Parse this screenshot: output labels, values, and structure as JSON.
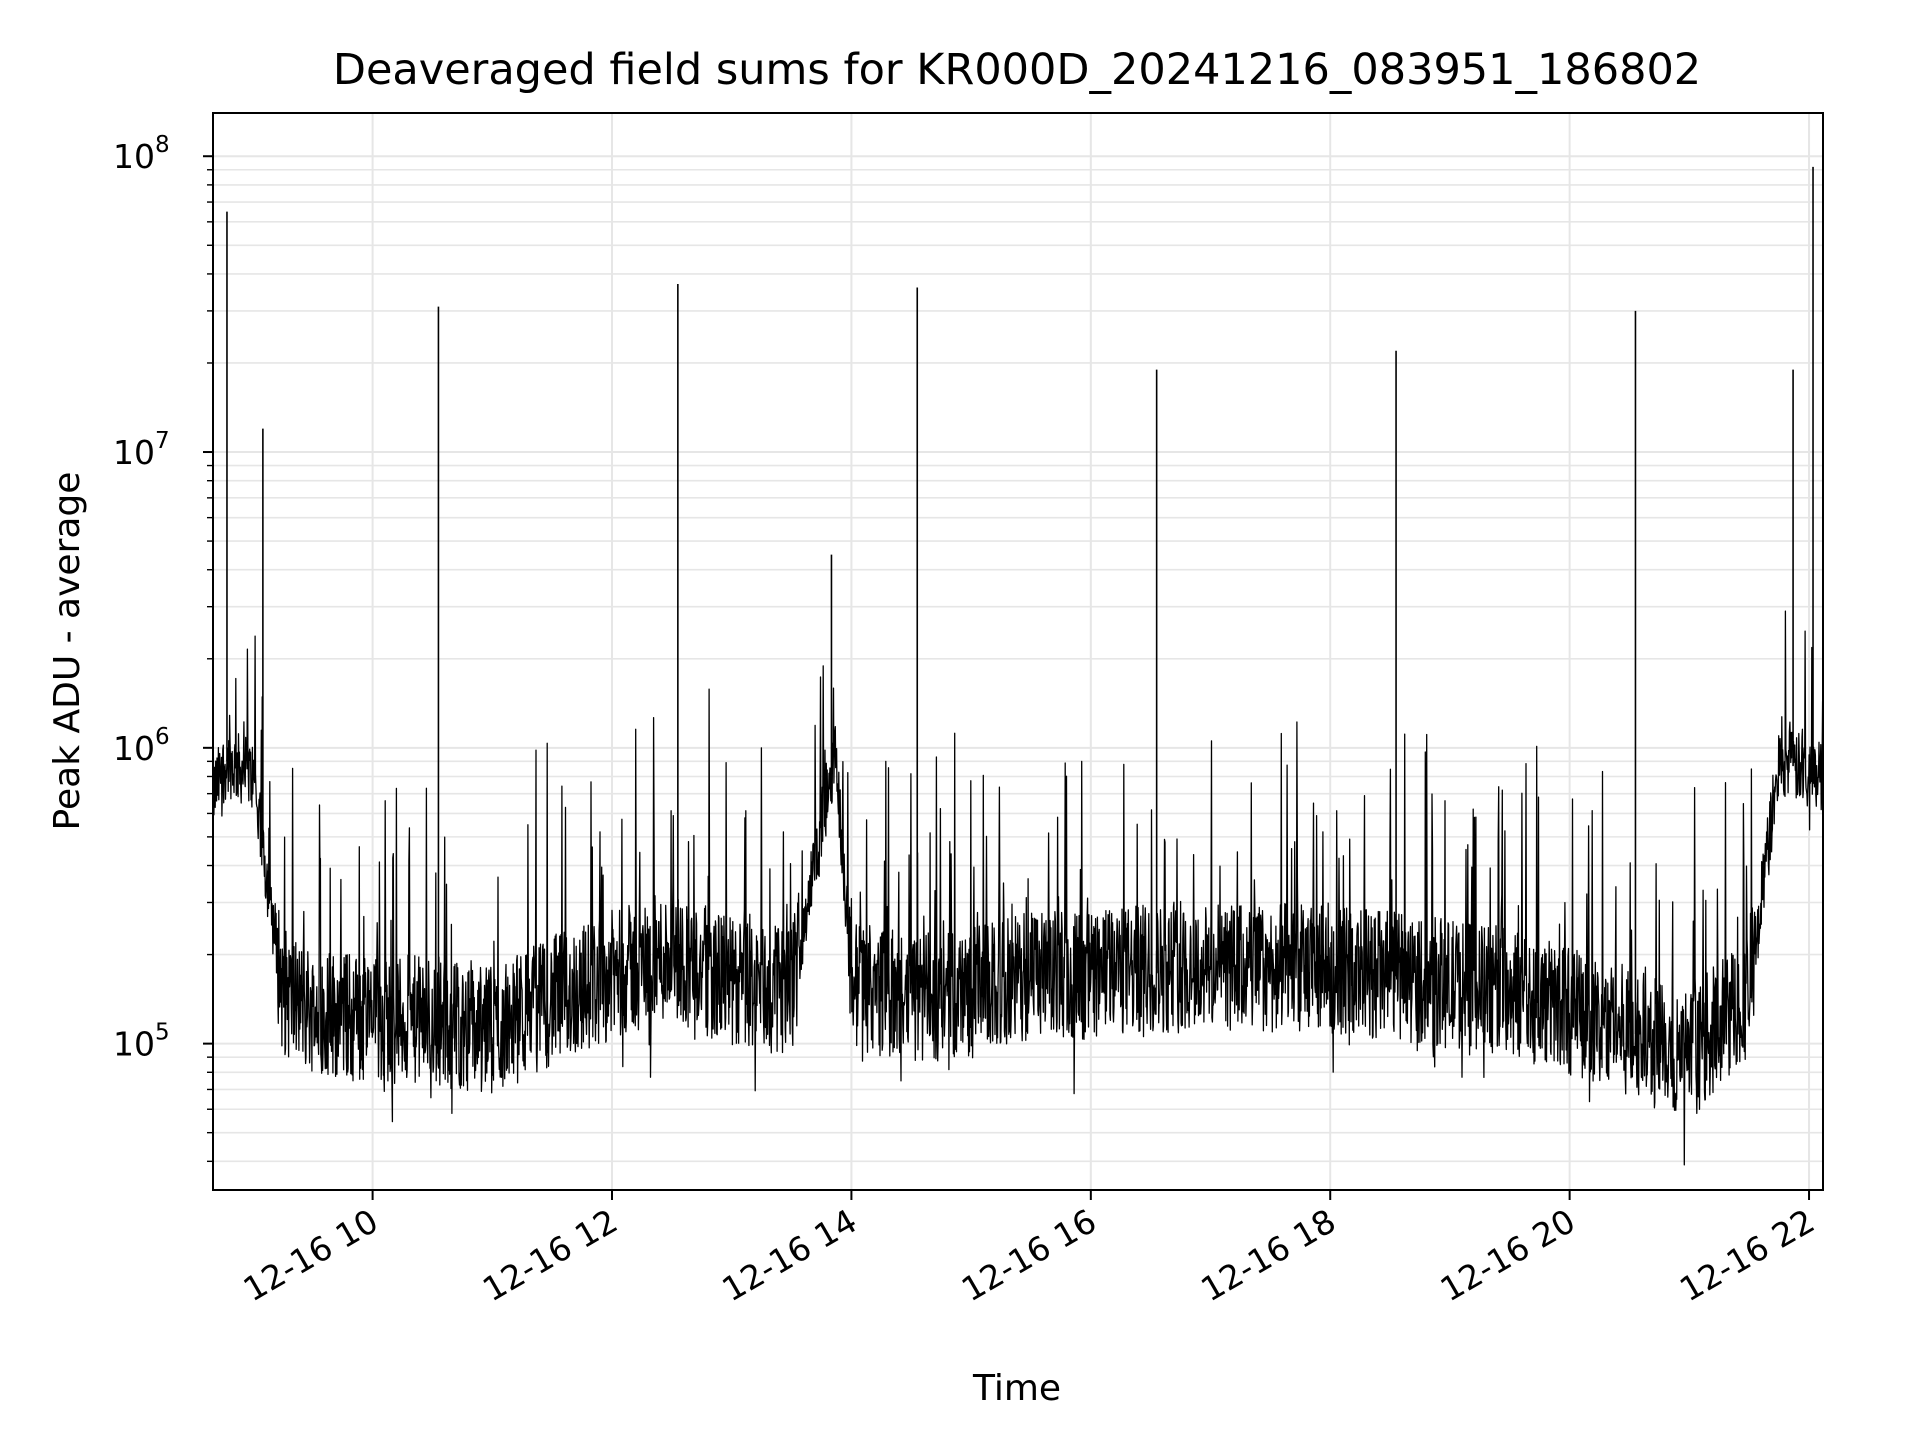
{
  "chart_data": {
    "type": "line",
    "title": "Deaveraged field sums for KR000D_20241216_083951_186802",
    "xlabel": "Time",
    "ylabel": "Peak ADU - average",
    "yscale": "log",
    "xlim": [
      "2024-12-16 08:40",
      "2024-12-16 22:07"
    ],
    "ylim": [
      32000,
      140000000
    ],
    "grid": "on (major and minor, light gray)",
    "x_ticks": [
      {
        "label": "12-16 10",
        "value": "2024-12-16 10:00"
      },
      {
        "label": "12-16 12",
        "value": "2024-12-16 12:00"
      },
      {
        "label": "12-16 14",
        "value": "2024-12-16 14:00"
      },
      {
        "label": "12-16 16",
        "value": "2024-12-16 16:00"
      },
      {
        "label": "12-16 18",
        "value": "2024-12-16 18:00"
      },
      {
        "label": "12-16 20",
        "value": "2024-12-16 20:00"
      },
      {
        "label": "12-16 22",
        "value": "2024-12-16 22:00"
      }
    ],
    "y_ticks": [
      {
        "base": "10",
        "exp": "5",
        "value": 100000
      },
      {
        "base": "10",
        "exp": "6",
        "value": 1000000
      },
      {
        "base": "10",
        "exp": "7",
        "value": 10000000
      },
      {
        "base": "10",
        "exp": "8",
        "value": 100000000
      }
    ],
    "line_color": "#000000",
    "series": [
      {
        "x": [
          "2024-12-16 08:40",
          "2024-12-16 08:47",
          "2024-12-16 09:00",
          "2024-12-16 09:15",
          "2024-12-16 09:30",
          "2024-12-16 10:00",
          "2024-12-16 10:30",
          "2024-12-16 11:00",
          "2024-12-16 11:30",
          "2024-12-16 12:00",
          "2024-12-16 12:30",
          "2024-12-16 13:00",
          "2024-12-16 13:30",
          "2024-12-16 13:52",
          "2024-12-16 14:00",
          "2024-12-16 14:30",
          "2024-12-16 15:00",
          "2024-12-16 15:30",
          "2024-12-16 16:00",
          "2024-12-16 16:30",
          "2024-12-16 17:00",
          "2024-12-16 17:30",
          "2024-12-16 18:00",
          "2024-12-16 18:30",
          "2024-12-16 19:00",
          "2024-12-16 19:30",
          "2024-12-16 20:00",
          "2024-12-16 20:30",
          "2024-12-16 21:00",
          "2024-12-16 21:30",
          "2024-12-16 21:45",
          "2024-12-16 22:07"
        ],
        "y": [
          700000,
          900000,
          800000,
          150000,
          130000,
          120000,
          120000,
          110000,
          140000,
          170000,
          200000,
          160000,
          150000,
          1000000,
          160000,
          140000,
          150000,
          170000,
          170000,
          180000,
          180000,
          180000,
          180000,
          170000,
          160000,
          150000,
          130000,
          110000,
          90000,
          150000,
          900000,
          800000
        ]
      }
    ],
    "spikes": [
      {
        "x": "2024-12-16 08:47",
        "y": 65000000
      },
      {
        "x": "2024-12-16 09:05",
        "y": 12000000
      },
      {
        "x": "2024-12-16 10:33",
        "y": 31000000
      },
      {
        "x": "2024-12-16 12:33",
        "y": 37000000
      },
      {
        "x": "2024-12-16 13:50",
        "y": 4500000
      },
      {
        "x": "2024-12-16 14:33",
        "y": 36000000
      },
      {
        "x": "2024-12-16 16:33",
        "y": 19000000
      },
      {
        "x": "2024-12-16 18:33",
        "y": 22000000
      },
      {
        "x": "2024-12-16 20:33",
        "y": 30000000
      },
      {
        "x": "2024-12-16 21:52",
        "y": 19000000
      },
      {
        "x": "2024-12-16 22:02",
        "y": 92000000
      }
    ]
  }
}
